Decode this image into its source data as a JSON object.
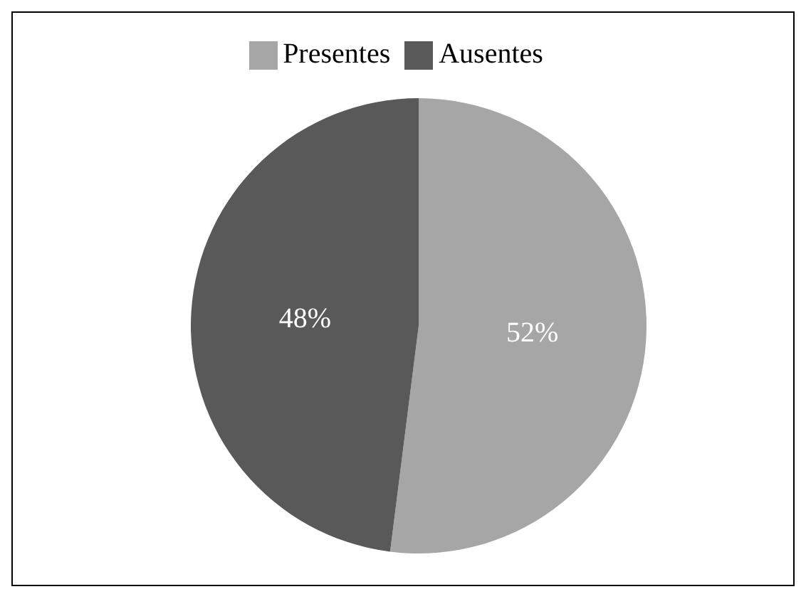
{
  "chart_data": {
    "type": "pie",
    "categories": [
      "Presentes",
      "Ausentes"
    ],
    "values": [
      52,
      48
    ],
    "colors": [
      "#a6a6a6",
      "#595959"
    ],
    "value_labels": [
      "52%",
      "48%"
    ],
    "legend": "top"
  }
}
